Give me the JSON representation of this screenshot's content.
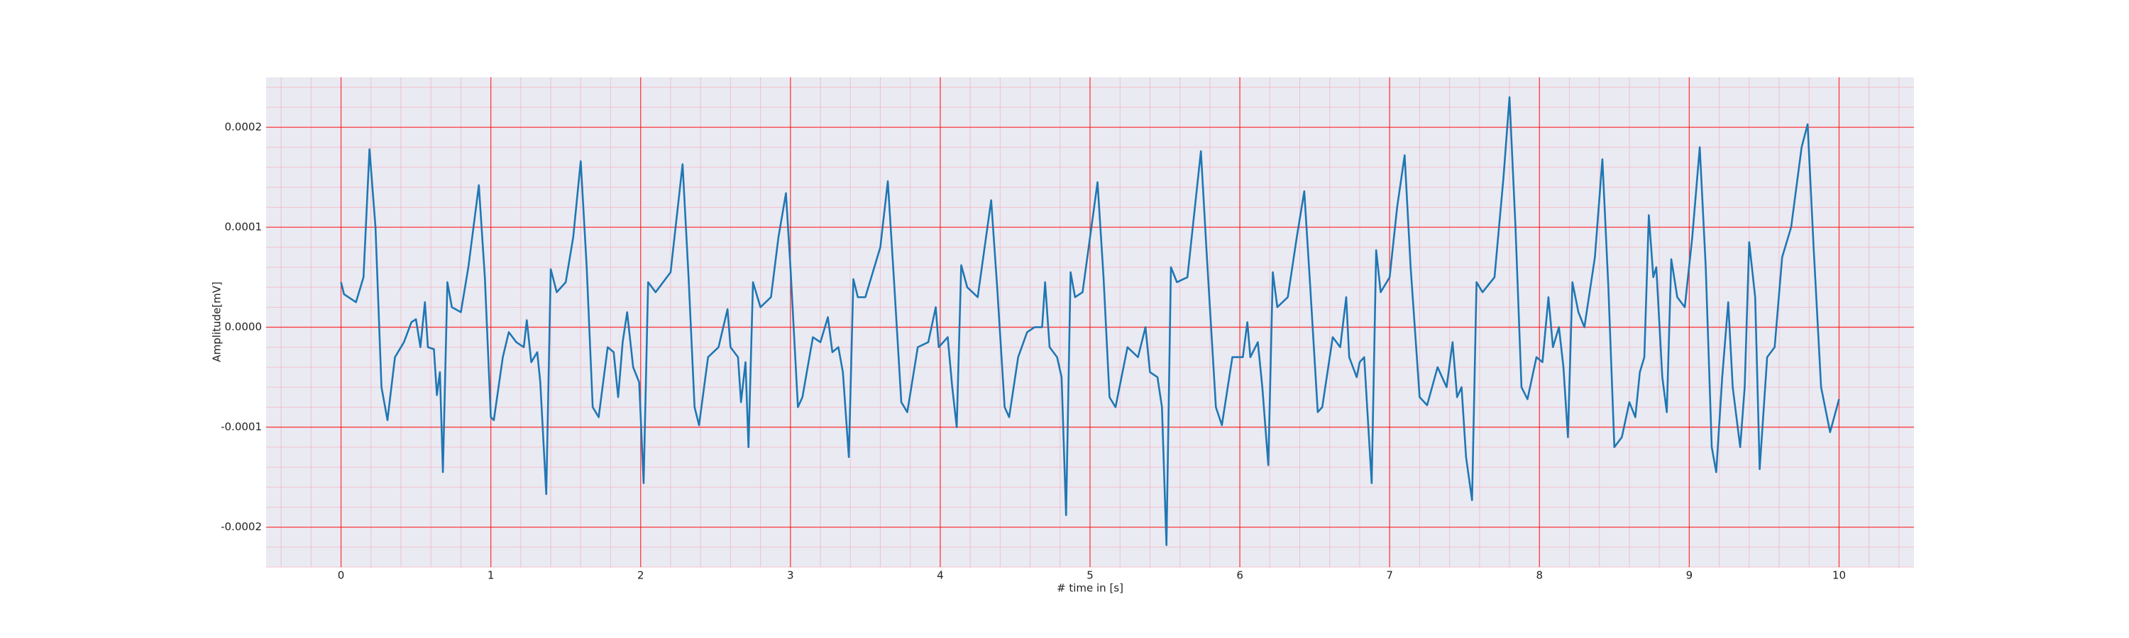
{
  "chart_data": {
    "type": "line",
    "xlabel": "# time in [s]",
    "ylabel": "Amplitude[mV]",
    "color": "#1f77b4",
    "background": "#eaeaf2",
    "grid": true,
    "grid_color": "#ff0000",
    "minor_grid_color": "#f4a6b4",
    "minor_xstep": 0.2,
    "minor_ystep": 2e-05,
    "xlim": [
      -0.5,
      10.5
    ],
    "ylim": [
      -0.00024,
      0.00025
    ],
    "xticks": [
      0,
      1,
      2,
      3,
      4,
      5,
      6,
      7,
      8,
      9,
      10
    ],
    "yticks": [
      {
        "value": -0.0002,
        "label": "-0.0002"
      },
      {
        "value": -0.0001,
        "label": "-0.0001"
      },
      {
        "value": 0,
        "label": "0.0000"
      },
      {
        "value": 0.0001,
        "label": "0.0001"
      },
      {
        "value": 0.0002,
        "label": "0.0002"
      }
    ],
    "x": [
      0.0,
      0.02,
      0.1,
      0.15,
      0.19,
      0.23,
      0.27,
      0.31,
      0.36,
      0.42,
      0.47,
      0.5,
      0.53,
      0.56,
      0.58,
      0.62,
      0.64,
      0.66,
      0.68,
      0.71,
      0.74,
      0.8,
      0.85,
      0.92,
      0.96,
      1.0,
      1.02,
      1.08,
      1.12,
      1.17,
      1.22,
      1.24,
      1.27,
      1.31,
      1.33,
      1.37,
      1.4,
      1.44,
      1.5,
      1.55,
      1.6,
      1.64,
      1.68,
      1.72,
      1.78,
      1.82,
      1.85,
      1.88,
      1.91,
      1.95,
      1.99,
      2.02,
      2.05,
      2.1,
      2.2,
      2.28,
      2.32,
      2.36,
      2.39,
      2.45,
      2.52,
      2.58,
      2.6,
      2.65,
      2.67,
      2.7,
      2.72,
      2.75,
      2.8,
      2.87,
      2.92,
      2.97,
      3.0,
      3.05,
      3.08,
      3.15,
      3.2,
      3.25,
      3.28,
      3.32,
      3.35,
      3.39,
      3.42,
      3.45,
      3.5,
      3.6,
      3.65,
      3.69,
      3.74,
      3.78,
      3.85,
      3.92,
      3.97,
      3.99,
      4.05,
      4.08,
      4.11,
      4.14,
      4.18,
      4.25,
      4.34,
      4.38,
      4.43,
      4.46,
      4.52,
      4.58,
      4.63,
      4.68,
      4.7,
      4.73,
      4.78,
      4.81,
      4.84,
      4.87,
      4.9,
      4.95,
      5.0,
      5.05,
      5.09,
      5.13,
      5.17,
      5.25,
      5.32,
      5.37,
      5.4,
      5.45,
      5.48,
      5.51,
      5.54,
      5.58,
      5.65,
      5.7,
      5.74,
      5.78,
      5.84,
      5.88,
      5.95,
      6.02,
      6.05,
      6.07,
      6.12,
      6.15,
      6.19,
      6.22,
      6.25,
      6.32,
      6.38,
      6.43,
      6.47,
      6.52,
      6.55,
      6.62,
      6.67,
      6.71,
      6.73,
      6.78,
      6.8,
      6.83,
      6.88,
      6.91,
      6.94,
      7.0,
      7.05,
      7.1,
      7.14,
      7.2,
      7.25,
      7.32,
      7.38,
      7.42,
      7.45,
      7.48,
      7.51,
      7.55,
      7.58,
      7.62,
      7.7,
      7.76,
      7.8,
      7.84,
      7.88,
      7.92,
      7.98,
      8.02,
      8.06,
      8.09,
      8.13,
      8.16,
      8.19,
      8.22,
      8.26,
      8.3,
      8.37,
      8.42,
      8.46,
      8.5,
      8.55,
      8.6,
      8.64,
      8.67,
      8.7,
      8.73,
      8.76,
      8.78,
      8.82,
      8.85,
      8.88,
      8.92,
      8.97,
      9.02,
      9.07,
      9.11,
      9.15,
      9.18,
      9.22,
      9.26,
      9.29,
      9.34,
      9.37,
      9.4,
      9.44,
      9.47,
      9.52,
      9.57,
      9.62,
      9.68,
      9.75,
      9.79,
      9.83,
      9.88,
      9.94,
      10.0
    ],
    "values": [
      4.5e-05,
      3.3e-05,
      2.5e-05,
      5e-05,
      0.000178,
      0.0001,
      -6e-05,
      -9.3e-05,
      -3e-05,
      -1.5e-05,
      5e-06,
      8e-06,
      -2e-05,
      2.5e-05,
      -2e-05,
      -2.2e-05,
      -6.8e-05,
      -4.5e-05,
      -0.000145,
      4.5e-05,
      2e-05,
      1.5e-05,
      6e-05,
      0.000142,
      5e-05,
      -9e-05,
      -9.3e-05,
      -3e-05,
      -5e-06,
      -1.5e-05,
      -2e-05,
      7e-06,
      -3.5e-05,
      -2.5e-05,
      -5.5e-05,
      -0.000167,
      5.8e-05,
      3.5e-05,
      4.5e-05,
      9e-05,
      0.000166,
      6e-05,
      -8e-05,
      -9e-05,
      -2e-05,
      -2.5e-05,
      -7e-05,
      -1.5e-05,
      1.5e-05,
      -4e-05,
      -5.5e-05,
      -0.000156,
      4.5e-05,
      3.5e-05,
      5.5e-05,
      0.000163,
      5e-05,
      -8e-05,
      -9.8e-05,
      -3e-05,
      -2e-05,
      1.8e-05,
      -2e-05,
      -3e-05,
      -7.5e-05,
      -3.5e-05,
      -0.00012,
      4.5e-05,
      2e-05,
      3e-05,
      9e-05,
      0.000134,
      6e-05,
      -8e-05,
      -7e-05,
      -1e-05,
      -1.5e-05,
      1e-05,
      -2.5e-05,
      -2e-05,
      -4.5e-05,
      -0.00013,
      4.8e-05,
      3e-05,
      3e-05,
      8e-05,
      0.000146,
      5e-05,
      -7.5e-05,
      -8.5e-05,
      -2e-05,
      -1.5e-05,
      2e-05,
      -2e-05,
      -1e-05,
      -6e-05,
      -0.0001,
      6.2e-05,
      4e-05,
      3e-05,
      0.000127,
      4e-05,
      -8e-05,
      -9e-05,
      -3e-05,
      -5e-06,
      0.0,
      0.0,
      4.5e-05,
      -2e-05,
      -3e-05,
      -5e-05,
      -0.000188,
      5.5e-05,
      3e-05,
      3.5e-05,
      9e-05,
      0.000145,
      5e-05,
      -7e-05,
      -8e-05,
      -2e-05,
      -3e-05,
      0.0,
      -4.5e-05,
      -5e-05,
      -8e-05,
      -0.000218,
      6e-05,
      4.5e-05,
      5e-05,
      0.00012,
      0.000176,
      7e-05,
      -8e-05,
      -9.8e-05,
      -3e-05,
      -3e-05,
      5e-06,
      -3e-05,
      -1.5e-05,
      -6e-05,
      -0.000138,
      5.5e-05,
      2e-05,
      3e-05,
      9e-05,
      0.000136,
      4e-05,
      -8.5e-05,
      -8e-05,
      -1e-05,
      -2e-05,
      3e-05,
      -3e-05,
      -5e-05,
      -3.5e-05,
      -3e-05,
      -0.000156,
      7.7e-05,
      3.5e-05,
      5e-05,
      0.00012,
      0.000172,
      6e-05,
      -7e-05,
      -7.8e-05,
      -4e-05,
      -6e-05,
      -1.5e-05,
      -7e-05,
      -6e-05,
      -0.00013,
      -0.000173,
      4.5e-05,
      3.5e-05,
      5e-05,
      0.00015,
      0.00023,
      0.0001,
      -6e-05,
      -7.2e-05,
      -3e-05,
      -3.5e-05,
      3e-05,
      -2e-05,
      0.0,
      -4e-05,
      -0.00011,
      4.5e-05,
      1.5e-05,
      0.0,
      7e-05,
      0.000168,
      4e-05,
      -0.00012,
      -0.00011,
      -7.5e-05,
      -9e-05,
      -4.5e-05,
      -3e-05,
      0.000112,
      5e-05,
      6e-05,
      -5e-05,
      -8.5e-05,
      6.8e-05,
      3e-05,
      2e-05,
      9e-05,
      0.00018,
      6e-05,
      -0.00012,
      -0.000145,
      -5e-05,
      2.5e-05,
      -6e-05,
      -0.00012,
      -6e-05,
      8.5e-05,
      3e-05,
      -0.000142,
      -3e-05,
      -2e-05,
      7e-05,
      0.0001,
      0.00018,
      0.000203,
      8e-05,
      -6e-05,
      -0.000105,
      -7.2e-05
    ]
  }
}
